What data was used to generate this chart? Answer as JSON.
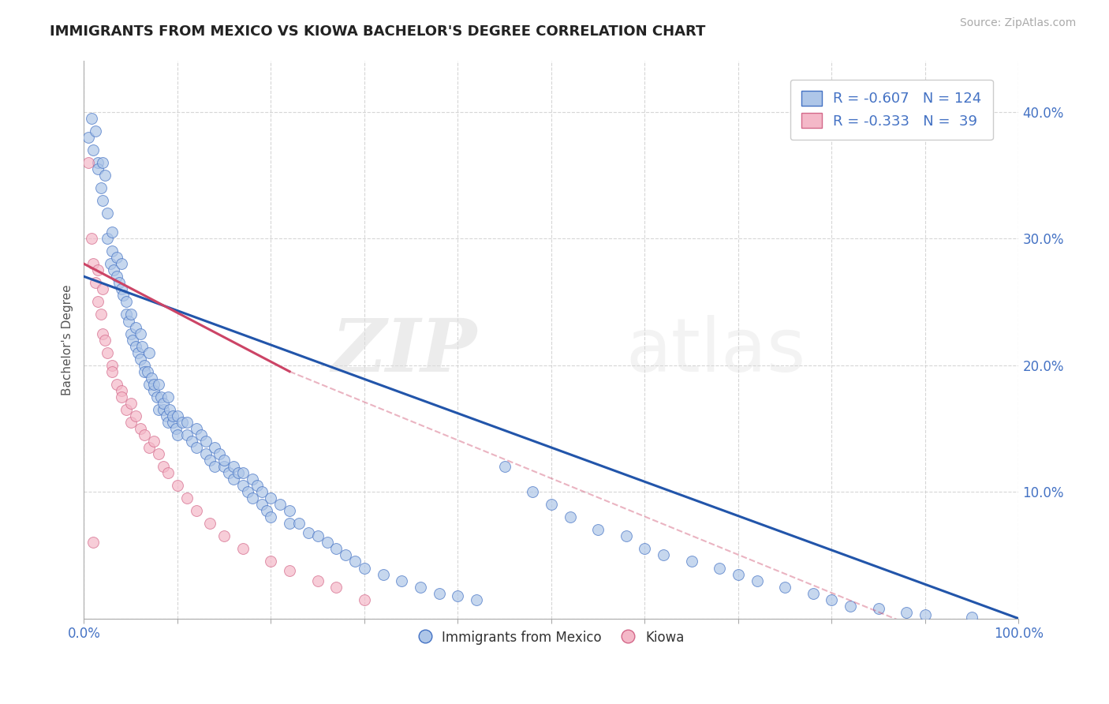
{
  "title": "IMMIGRANTS FROM MEXICO VS KIOWA BACHELOR'S DEGREE CORRELATION CHART",
  "source_text": "Source: ZipAtlas.com",
  "ylabel": "Bachelor's Degree",
  "watermark_zip": "ZIP",
  "watermark_atlas": "atlas",
  "xlim": [
    0.0,
    1.0
  ],
  "ylim": [
    0.0,
    0.44
  ],
  "xtick_positions": [
    0.0,
    0.1,
    0.2,
    0.3,
    0.4,
    0.5,
    0.6,
    0.7,
    0.8,
    0.9,
    1.0
  ],
  "ytick_positions": [
    0.0,
    0.1,
    0.2,
    0.3,
    0.4
  ],
  "ytick_labels": [
    "",
    "10.0%",
    "20.0%",
    "30.0%",
    "40.0%"
  ],
  "blue_R": -0.607,
  "blue_N": 124,
  "pink_R": -0.333,
  "pink_N": 39,
  "blue_color": "#aec6e8",
  "blue_edge_color": "#4472c4",
  "blue_line_color": "#2255aa",
  "pink_color": "#f4b8c8",
  "pink_edge_color": "#d4688a",
  "pink_line_color": "#cc4466",
  "legend_label_blue": "Immigrants from Mexico",
  "legend_label_pink": "Kiowa",
  "blue_trendline": [
    0.27,
    0.0
  ],
  "pink_trendline_solid": [
    [
      0.0,
      0.28
    ],
    [
      0.22,
      0.195
    ]
  ],
  "pink_trendline_dashed": [
    [
      0.22,
      0.195
    ],
    [
      1.0,
      -0.04
    ]
  ],
  "blue_x": [
    0.005,
    0.008,
    0.01,
    0.012,
    0.015,
    0.015,
    0.018,
    0.02,
    0.02,
    0.022,
    0.025,
    0.025,
    0.028,
    0.03,
    0.03,
    0.032,
    0.035,
    0.035,
    0.038,
    0.04,
    0.04,
    0.042,
    0.045,
    0.045,
    0.048,
    0.05,
    0.05,
    0.052,
    0.055,
    0.055,
    0.058,
    0.06,
    0.06,
    0.062,
    0.065,
    0.065,
    0.068,
    0.07,
    0.07,
    0.072,
    0.075,
    0.075,
    0.078,
    0.08,
    0.08,
    0.082,
    0.085,
    0.085,
    0.088,
    0.09,
    0.09,
    0.092,
    0.095,
    0.095,
    0.098,
    0.1,
    0.1,
    0.105,
    0.11,
    0.11,
    0.115,
    0.12,
    0.12,
    0.125,
    0.13,
    0.13,
    0.135,
    0.14,
    0.14,
    0.145,
    0.15,
    0.15,
    0.155,
    0.16,
    0.16,
    0.165,
    0.17,
    0.17,
    0.175,
    0.18,
    0.18,
    0.185,
    0.19,
    0.19,
    0.195,
    0.2,
    0.2,
    0.21,
    0.22,
    0.22,
    0.23,
    0.24,
    0.25,
    0.26,
    0.27,
    0.28,
    0.29,
    0.3,
    0.32,
    0.34,
    0.36,
    0.38,
    0.4,
    0.42,
    0.45,
    0.48,
    0.5,
    0.52,
    0.55,
    0.58,
    0.6,
    0.62,
    0.65,
    0.68,
    0.7,
    0.72,
    0.75,
    0.78,
    0.8,
    0.82,
    0.85,
    0.88,
    0.9,
    0.95
  ],
  "blue_y": [
    0.38,
    0.395,
    0.37,
    0.385,
    0.36,
    0.355,
    0.34,
    0.36,
    0.33,
    0.35,
    0.32,
    0.3,
    0.28,
    0.305,
    0.29,
    0.275,
    0.27,
    0.285,
    0.265,
    0.28,
    0.26,
    0.255,
    0.25,
    0.24,
    0.235,
    0.24,
    0.225,
    0.22,
    0.215,
    0.23,
    0.21,
    0.225,
    0.205,
    0.215,
    0.2,
    0.195,
    0.195,
    0.21,
    0.185,
    0.19,
    0.18,
    0.185,
    0.175,
    0.185,
    0.165,
    0.175,
    0.165,
    0.17,
    0.16,
    0.175,
    0.155,
    0.165,
    0.155,
    0.16,
    0.15,
    0.16,
    0.145,
    0.155,
    0.145,
    0.155,
    0.14,
    0.15,
    0.135,
    0.145,
    0.13,
    0.14,
    0.125,
    0.135,
    0.12,
    0.13,
    0.12,
    0.125,
    0.115,
    0.12,
    0.11,
    0.115,
    0.105,
    0.115,
    0.1,
    0.11,
    0.095,
    0.105,
    0.09,
    0.1,
    0.085,
    0.095,
    0.08,
    0.09,
    0.075,
    0.085,
    0.075,
    0.068,
    0.065,
    0.06,
    0.055,
    0.05,
    0.045,
    0.04,
    0.035,
    0.03,
    0.025,
    0.02,
    0.018,
    0.015,
    0.12,
    0.1,
    0.09,
    0.08,
    0.07,
    0.065,
    0.055,
    0.05,
    0.045,
    0.04,
    0.035,
    0.03,
    0.025,
    0.02,
    0.015,
    0.01,
    0.008,
    0.005,
    0.003,
    0.001
  ],
  "pink_x": [
    0.005,
    0.008,
    0.01,
    0.012,
    0.015,
    0.015,
    0.018,
    0.02,
    0.02,
    0.022,
    0.025,
    0.03,
    0.03,
    0.035,
    0.04,
    0.04,
    0.045,
    0.05,
    0.05,
    0.055,
    0.06,
    0.065,
    0.07,
    0.075,
    0.08,
    0.085,
    0.09,
    0.1,
    0.11,
    0.12,
    0.135,
    0.15,
    0.17,
    0.2,
    0.22,
    0.25,
    0.27,
    0.3,
    0.01
  ],
  "pink_y": [
    0.36,
    0.3,
    0.28,
    0.265,
    0.275,
    0.25,
    0.24,
    0.26,
    0.225,
    0.22,
    0.21,
    0.2,
    0.195,
    0.185,
    0.18,
    0.175,
    0.165,
    0.17,
    0.155,
    0.16,
    0.15,
    0.145,
    0.135,
    0.14,
    0.13,
    0.12,
    0.115,
    0.105,
    0.095,
    0.085,
    0.075,
    0.065,
    0.055,
    0.045,
    0.038,
    0.03,
    0.025,
    0.015,
    0.06
  ]
}
